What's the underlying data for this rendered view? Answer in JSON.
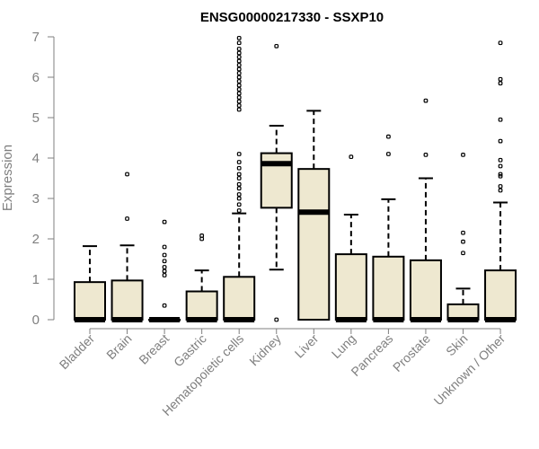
{
  "chart_data": {
    "type": "boxplot",
    "title": "ENSG00000217330 - SSXP10",
    "xlabel": "",
    "ylabel": "Expression",
    "ylim": [
      0,
      7
    ],
    "yticks": [
      0,
      1,
      2,
      3,
      4,
      5,
      6,
      7
    ],
    "box_fill": "#eee8d0",
    "axis_color": "#7f7f7f",
    "categories": [
      "Bladder",
      "Brain",
      "Breast",
      "Gastric",
      "Hematopoietic cells",
      "Kidney",
      "Liver",
      "Lung",
      "Pancreas",
      "Prostate",
      "Skin",
      "Unknown / Other"
    ],
    "series": [
      {
        "name": "Bladder",
        "min": 0,
        "q1": 0,
        "median": 0,
        "q3": 0.93,
        "max": 1.82,
        "outliers": []
      },
      {
        "name": "Brain",
        "min": 0,
        "q1": 0,
        "median": 0,
        "q3": 0.97,
        "max": 1.84,
        "outliers": [
          2.5,
          3.6
        ]
      },
      {
        "name": "Breast",
        "min": 0,
        "q1": 0,
        "median": 0,
        "q3": 0,
        "max": 0,
        "outliers": [
          0.35,
          1.1,
          1.2,
          1.3,
          1.45,
          1.6,
          1.8,
          2.42
        ]
      },
      {
        "name": "Gastric",
        "min": 0,
        "q1": 0,
        "median": 0,
        "q3": 0.7,
        "max": 1.22,
        "outliers": [
          2.0,
          2.08
        ]
      },
      {
        "name": "Hematopoietic cells",
        "min": 0,
        "q1": 0,
        "median": 0,
        "q3": 1.06,
        "max": 2.63,
        "outliers": [
          2.7,
          2.85,
          3.0,
          3.1,
          3.25,
          3.35,
          3.5,
          3.6,
          3.75,
          3.9,
          4.1,
          5.2,
          5.3,
          5.4,
          5.5,
          5.6,
          5.7,
          5.8,
          5.9,
          6.0,
          6.1,
          6.2,
          6.3,
          6.4,
          6.5,
          6.6,
          6.7,
          6.85,
          6.97
        ]
      },
      {
        "name": "Kidney",
        "min": 1.24,
        "q1": 2.77,
        "median": 3.86,
        "q3": 4.12,
        "max": 4.8,
        "outliers": [
          0,
          6.77
        ]
      },
      {
        "name": "Liver",
        "min": 0,
        "q1": 0,
        "median": 2.66,
        "q3": 3.73,
        "max": 5.17,
        "outliers": []
      },
      {
        "name": "Lung",
        "min": 0,
        "q1": 0,
        "median": 0,
        "q3": 1.62,
        "max": 2.6,
        "outliers": [
          4.03
        ]
      },
      {
        "name": "Pancreas",
        "min": 0,
        "q1": 0,
        "median": 0,
        "q3": 1.56,
        "max": 2.98,
        "outliers": [
          4.1,
          4.53
        ]
      },
      {
        "name": "Prostate",
        "min": 0,
        "q1": 0,
        "median": 0,
        "q3": 1.47,
        "max": 3.5,
        "outliers": [
          4.08,
          5.42
        ]
      },
      {
        "name": "Skin",
        "min": 0,
        "q1": 0,
        "median": 0,
        "q3": 0.38,
        "max": 0.77,
        "outliers": [
          1.65,
          1.93,
          2.15,
          4.08
        ]
      },
      {
        "name": "Unknown / Other",
        "min": 0,
        "q1": 0,
        "median": 0,
        "q3": 1.22,
        "max": 2.9,
        "outliers": [
          3.2,
          3.3,
          3.55,
          3.6,
          3.8,
          3.95,
          4.42,
          4.95,
          5.85,
          5.95,
          6.85
        ]
      }
    ]
  }
}
